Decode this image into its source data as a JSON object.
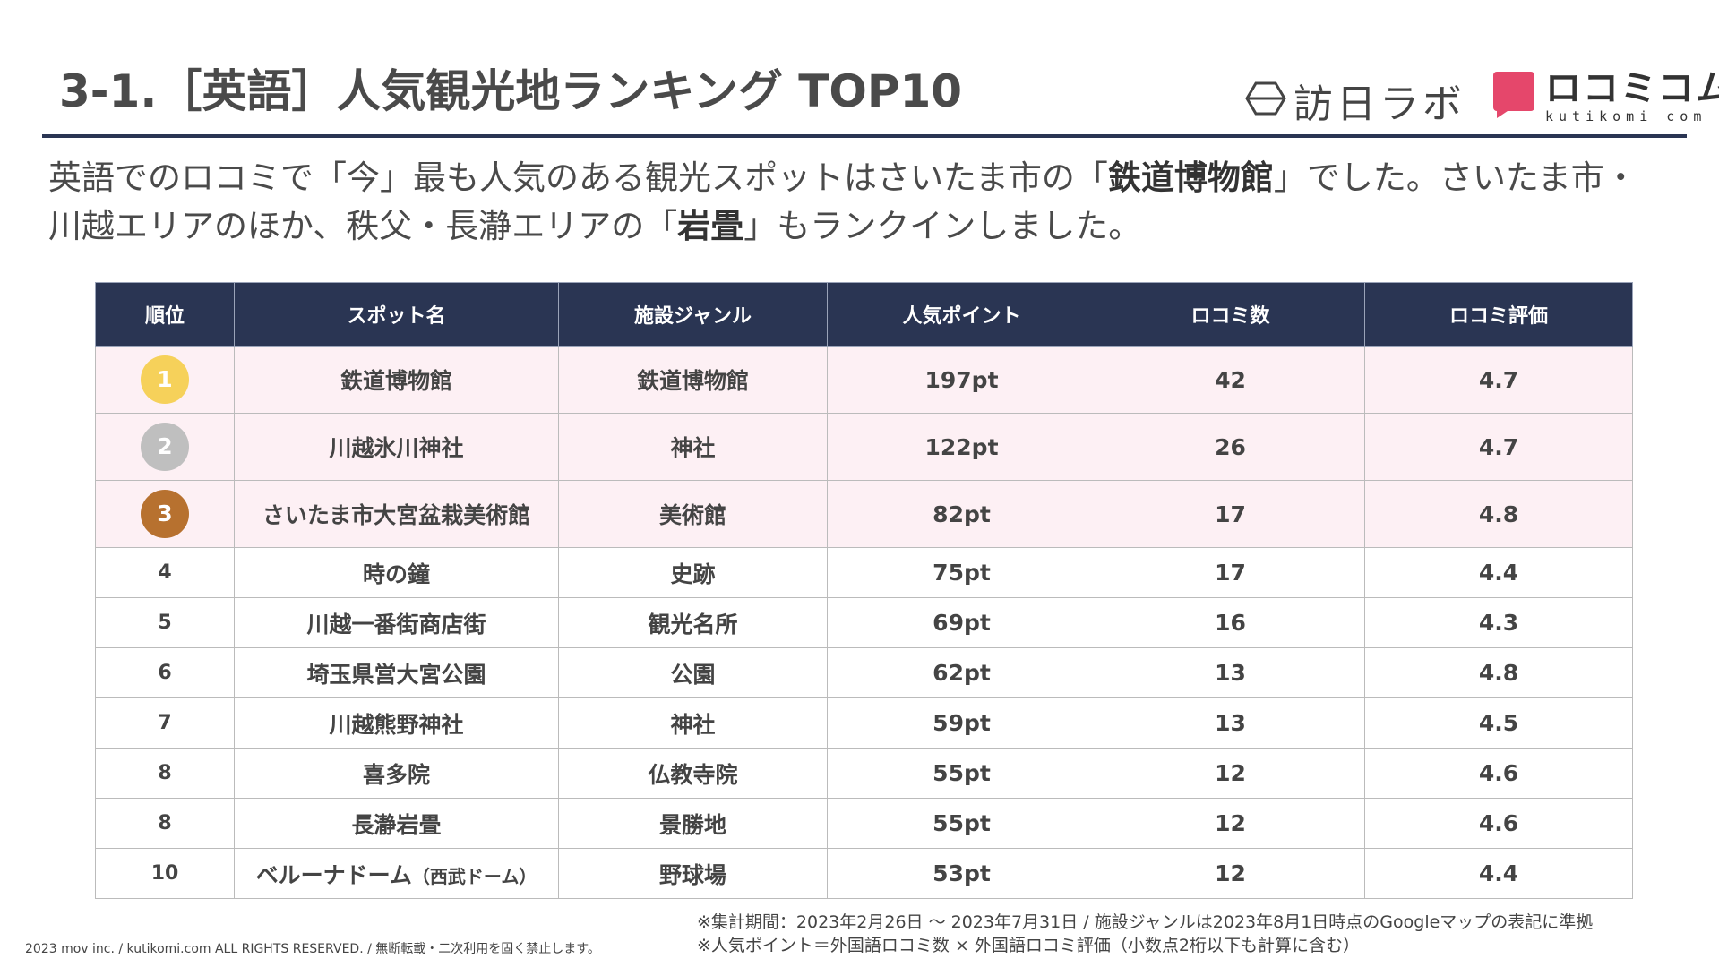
{
  "header": {
    "title": "3-1.［英語］人気観光地ランキング TOP10",
    "logo_houjin": "訪日ラボ",
    "logo_kutikomi_main": "ロコミコム",
    "logo_kutikomi_sub": "kutikomi com"
  },
  "lead": {
    "part1": "英語でのロコミで「今」最も人気のある観光スポットはさいたま市の「",
    "bold1": "鉄道博物館",
    "part2": "」でした。さいたま市・川越エリアのほか、秩父・長瀞エリアの「",
    "bold2": "岩畳",
    "part3": "」もランクインしました。"
  },
  "table": {
    "headers": [
      "順位",
      "スポット名",
      "施設ジャンル",
      "人気ポイント",
      "ロコミ数",
      "ロコミ評価"
    ],
    "rows": [
      {
        "rank": "1",
        "name": "鉄道博物館",
        "genre": "鉄道博物館",
        "points": "197pt",
        "count": "42",
        "rating": "4.7"
      },
      {
        "rank": "2",
        "name": "川越氷川神社",
        "genre": "神社",
        "points": "122pt",
        "count": "26",
        "rating": "4.7"
      },
      {
        "rank": "3",
        "name": "さいたま市大宮盆栽美術館",
        "genre": "美術館",
        "points": "82pt",
        "count": "17",
        "rating": "4.8"
      },
      {
        "rank": "4",
        "name": "時の鐘",
        "genre": "史跡",
        "points": "75pt",
        "count": "17",
        "rating": "4.4"
      },
      {
        "rank": "5",
        "name": "川越一番街商店街",
        "genre": "観光名所",
        "points": "69pt",
        "count": "16",
        "rating": "4.3"
      },
      {
        "rank": "6",
        "name": "埼玉県営大宮公園",
        "genre": "公園",
        "points": "62pt",
        "count": "13",
        "rating": "4.8"
      },
      {
        "rank": "7",
        "name": "川越熊野神社",
        "genre": "神社",
        "points": "59pt",
        "count": "13",
        "rating": "4.5"
      },
      {
        "rank": "8",
        "name": "喜多院",
        "genre": "仏教寺院",
        "points": "55pt",
        "count": "12",
        "rating": "4.6"
      },
      {
        "rank": "8",
        "name": "長瀞岩畳",
        "genre": "景勝地",
        "points": "55pt",
        "count": "12",
        "rating": "4.6"
      },
      {
        "rank": "10",
        "name": "ベルーナドーム",
        "name_sub": "（西武ドーム）",
        "genre": "野球場",
        "points": "53pt",
        "count": "12",
        "rating": "4.4"
      }
    ]
  },
  "footer": {
    "copyright": "2023 mov inc. / kutikomi.com ALL RIGHTS RESERVED. / 無断転載・二次利用を固く禁止します。",
    "note1": "※集計期間：2023年2月26日 〜 2023年7月31日 / 施設ジャンルは2023年8月1日時点のGoogleマップの表記に準拠",
    "note2": "※人気ポイント＝外国語ロコミ数 × 外国語ロコミ評価（小数点2桁以下も計算に含む）"
  },
  "colors": {
    "header_navy": "#2a3553",
    "top3_row_bg": "#fdf0f4",
    "gold": "#f6d15a",
    "silver": "#bfbfbf",
    "bronze": "#b7712f",
    "logo_pink": "#e5476b"
  },
  "icons": {
    "houjin_logo_mark": "hexagon-icon",
    "kutikomi_logo_mark": "speech-bubble-icon"
  }
}
